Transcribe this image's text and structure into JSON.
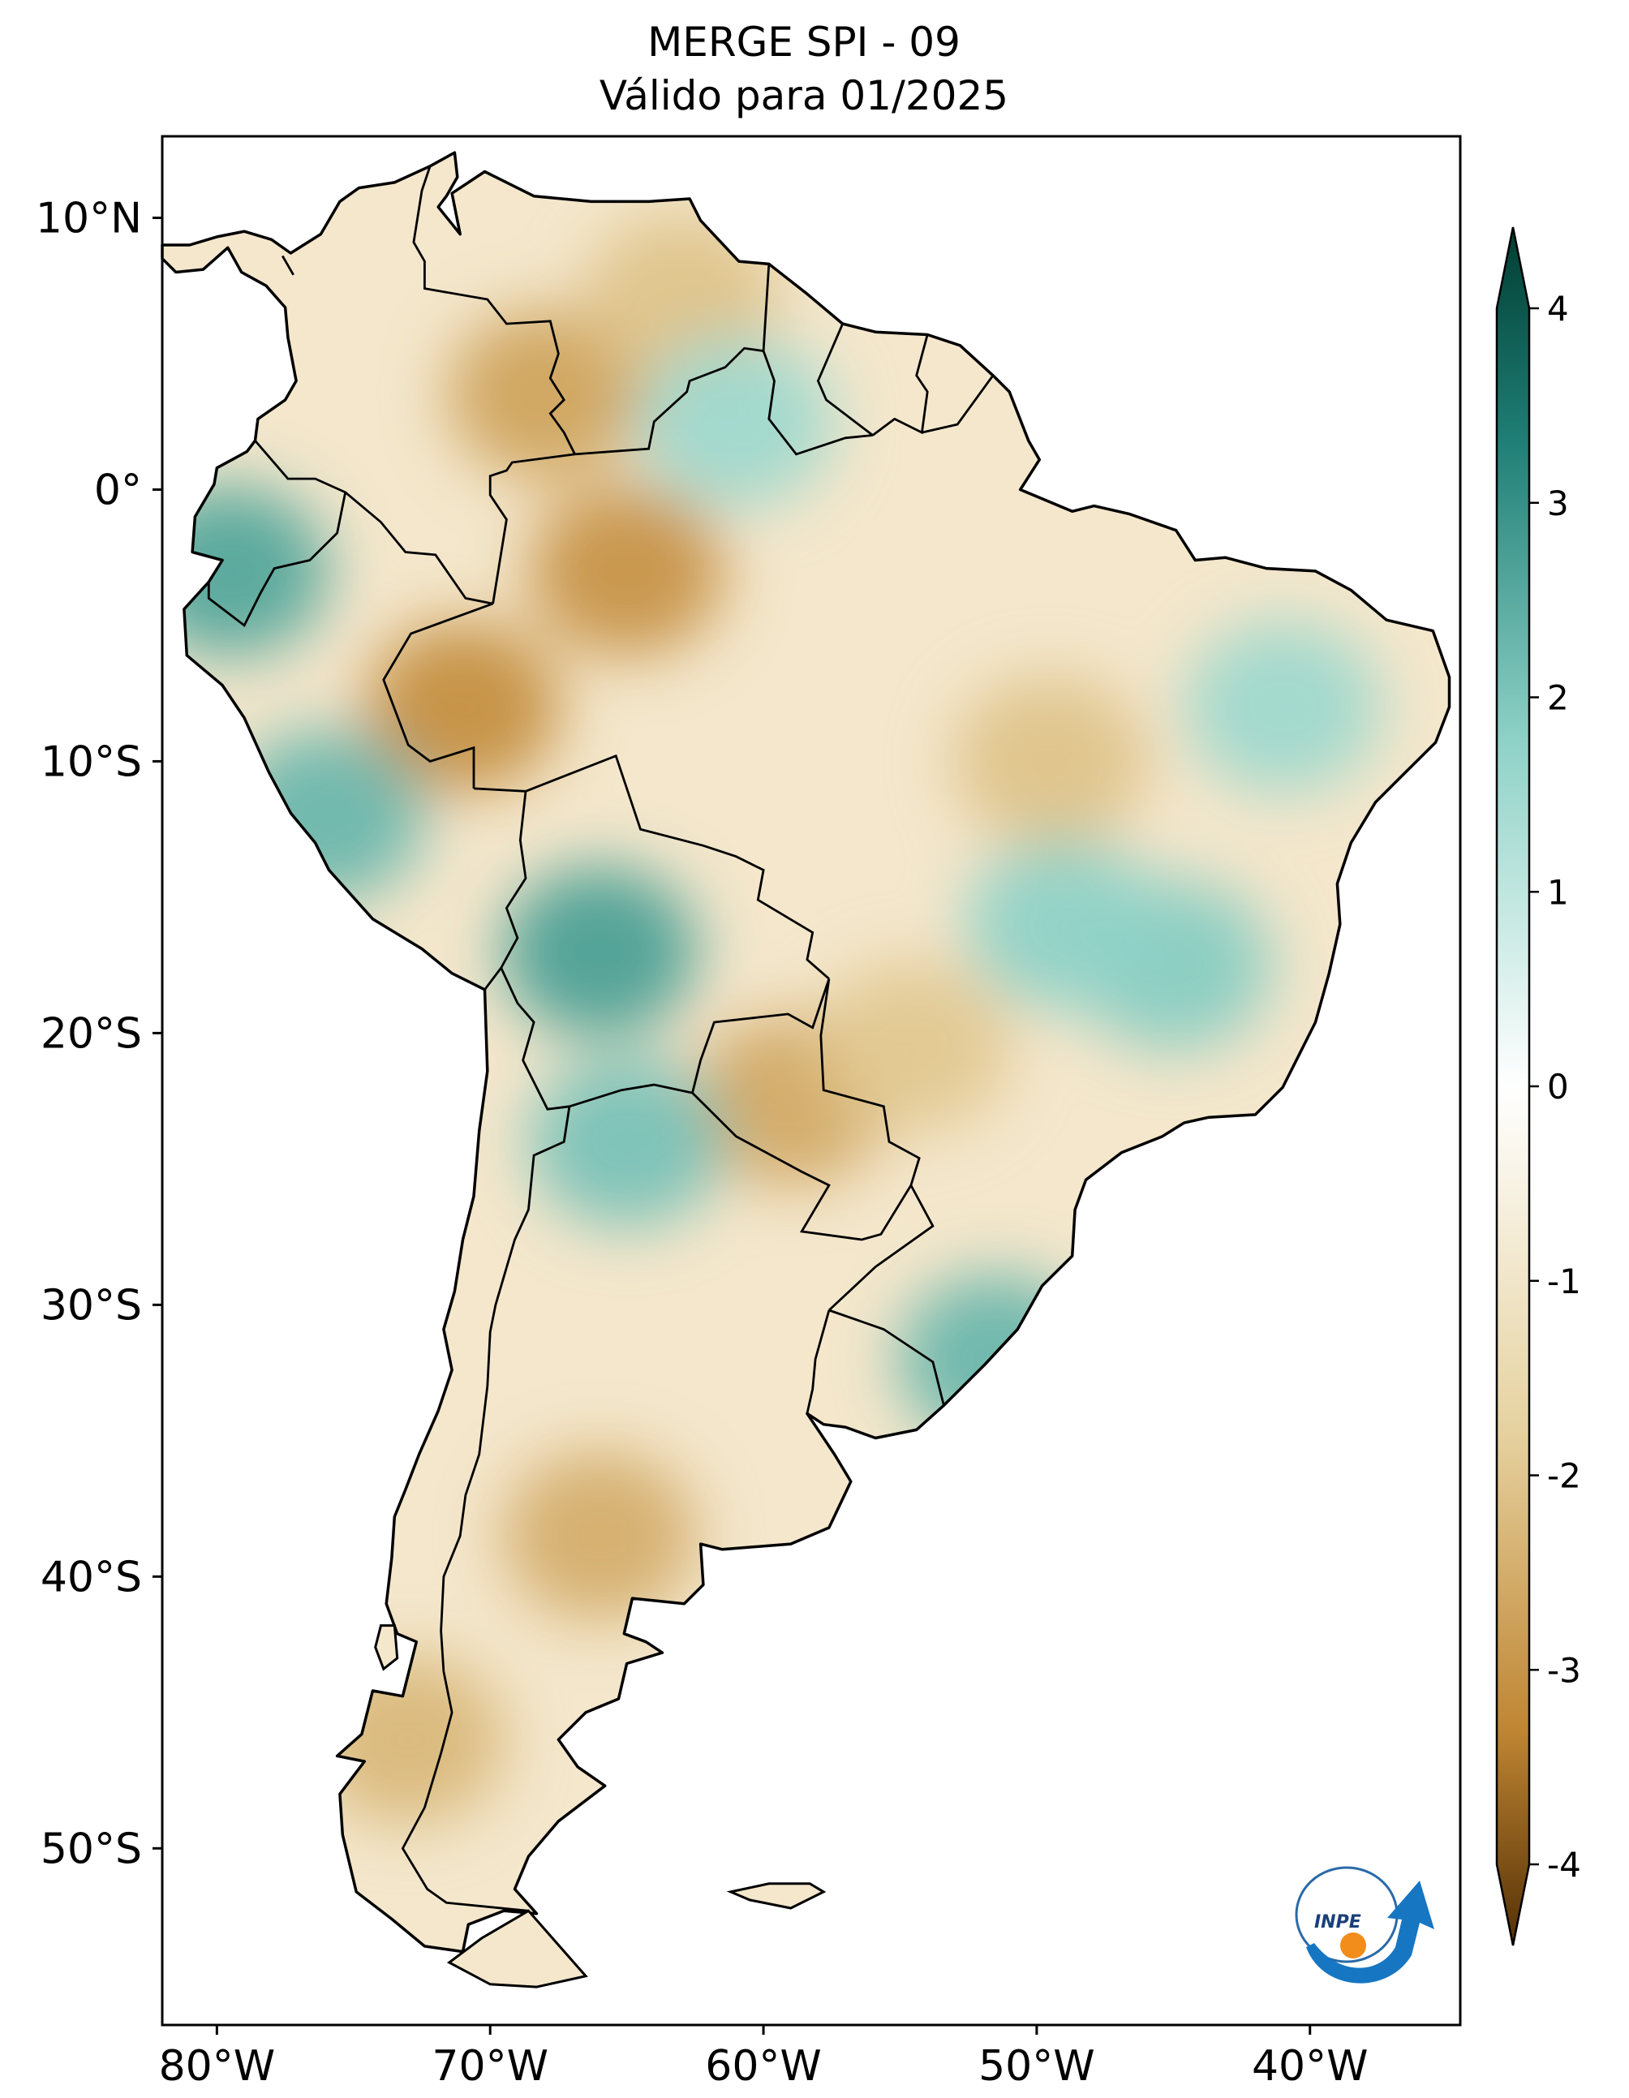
{
  "title": {
    "line1": "MERGE   SPI - 09",
    "line2": "Válido para 01/2025"
  },
  "map": {
    "region": "South America",
    "extent": {
      "lon": [
        -82.0,
        -34.5
      ],
      "lat": [
        -56.5,
        13.0
      ]
    },
    "lon_ticks": [
      {
        "value": -80,
        "label": "80°W"
      },
      {
        "value": -70,
        "label": "70°W"
      },
      {
        "value": -60,
        "label": "60°W"
      },
      {
        "value": -50,
        "label": "50°W"
      },
      {
        "value": -40,
        "label": "40°W"
      }
    ],
    "lat_ticks": [
      {
        "value": 10,
        "label": "10°N"
      },
      {
        "value": 0,
        "label": "0°"
      },
      {
        "value": -10,
        "label": "10°S"
      },
      {
        "value": -20,
        "label": "20°S"
      },
      {
        "value": -30,
        "label": "30°S"
      },
      {
        "value": -40,
        "label": "40°S"
      },
      {
        "value": -50,
        "label": "50°S"
      }
    ]
  },
  "colorbar": {
    "range": [
      -4,
      4
    ],
    "extend": "both",
    "ticks": [
      {
        "value": 4,
        "label": "4"
      },
      {
        "value": 3,
        "label": "3"
      },
      {
        "value": 2,
        "label": "2"
      },
      {
        "value": 1,
        "label": "1"
      },
      {
        "value": 0,
        "label": "0"
      },
      {
        "value": -1,
        "label": "-1"
      },
      {
        "value": -2,
        "label": "-2"
      },
      {
        "value": -3,
        "label": "-3"
      },
      {
        "value": -4,
        "label": "-4"
      }
    ],
    "colors": {
      "max": "#013d32",
      "high": "#1f7f76",
      "mid_high": "#8fd2c7",
      "zero": "#ffffff",
      "mid_low": "#e6d2a0",
      "low": "#bf8532",
      "min": "#543005"
    }
  },
  "logo": {
    "text": "INPE",
    "icon": "inpe-logo"
  },
  "spi_regions": [
    {
      "id": "dry-north-colombia",
      "value": -2.4,
      "lon": -68.0,
      "lat": 3.5
    },
    {
      "id": "dry-amazonas",
      "value": -2.7,
      "lon": -65.0,
      "lat": -3.0
    },
    {
      "id": "dry-acre",
      "value": -2.8,
      "lon": -71.0,
      "lat": -8.0
    },
    {
      "id": "dry-venezuela",
      "value": -1.8,
      "lon": -63.0,
      "lat": 7.0
    },
    {
      "id": "dry-paraguay",
      "value": -2.3,
      "lon": -59.0,
      "lat": -22.5
    },
    {
      "id": "dry-patagonia",
      "value": -2.2,
      "lon": -66.0,
      "lat": -38.5
    },
    {
      "id": "dry-chile-south",
      "value": -2.0,
      "lon": -73.0,
      "lat": -46.0
    },
    {
      "id": "dry-tocantins",
      "value": -1.8,
      "lon": -49.5,
      "lat": -10.0
    },
    {
      "id": "dry-mato-grosso-sul",
      "value": -1.7,
      "lon": -54.5,
      "lat": -20.5
    },
    {
      "id": "wet-bolivia",
      "value": 2.4,
      "lon": -66.0,
      "lat": -17.0
    },
    {
      "id": "wet-ecuador",
      "value": 2.3,
      "lon": -79.5,
      "lat": -3.0
    },
    {
      "id": "wet-peru-coast",
      "value": 2.0,
      "lon": -76.0,
      "lat": -12.0
    },
    {
      "id": "wet-salta",
      "value": 1.8,
      "lon": -65.0,
      "lat": -24.0
    },
    {
      "id": "wet-rio-grande-sul",
      "value": 2.0,
      "lon": -51.5,
      "lat": -32.0
    },
    {
      "id": "wet-minas",
      "value": 1.6,
      "lon": -45.0,
      "lat": -17.5
    },
    {
      "id": "wet-goias",
      "value": 1.5,
      "lon": -49.0,
      "lat": -16.0
    },
    {
      "id": "wet-roraima",
      "value": 1.3,
      "lon": -61.0,
      "lat": 2.5
    },
    {
      "id": "wet-piaui",
      "value": 1.3,
      "lon": -41.0,
      "lat": -8.0
    }
  ]
}
